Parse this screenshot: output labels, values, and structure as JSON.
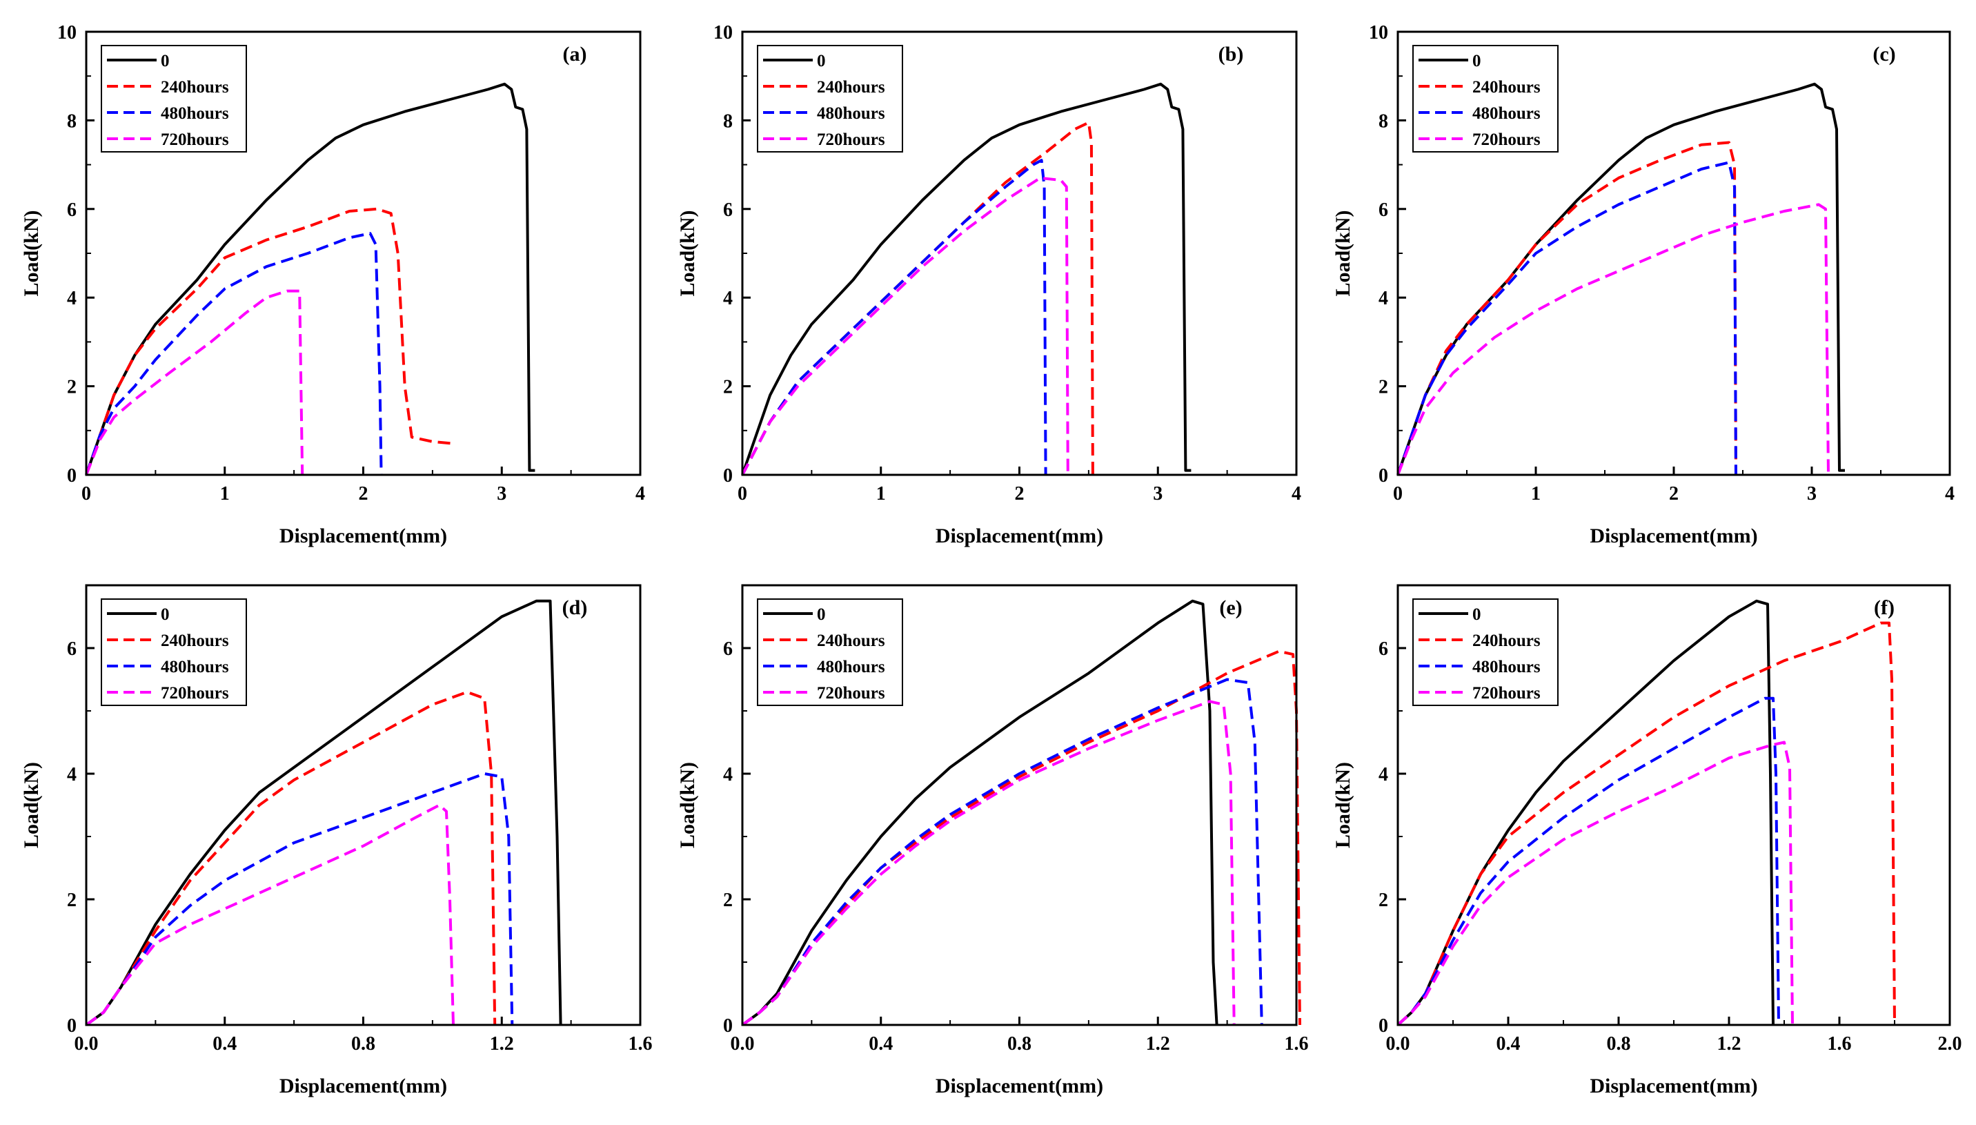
{
  "figure": {
    "series_styles": [
      {
        "name": "0",
        "color": "#000000",
        "dash": "solid"
      },
      {
        "name": "240hours",
        "color": "#ff0000",
        "dash": "dashed"
      },
      {
        "name": "480hours",
        "color": "#0000ff",
        "dash": "dashed"
      },
      {
        "name": "720hours",
        "color": "#ff00ff",
        "dash": "dashed"
      }
    ]
  },
  "chart_data": [
    {
      "type": "line",
      "panel_label": "(a)",
      "xlabel": "Displacement(mm)",
      "ylabel": "Load(kN)",
      "xlim": [
        0,
        4
      ],
      "ylim": [
        0,
        10
      ],
      "xticks": [
        "0",
        "1",
        "2",
        "3",
        "4"
      ],
      "yticks": [
        "0",
        "2",
        "4",
        "6",
        "8",
        "10"
      ],
      "xtick_values": [
        0,
        1,
        2,
        3,
        4
      ],
      "ytick_values": [
        0,
        2,
        4,
        6,
        8,
        10
      ],
      "legend": [
        "0",
        "240hours",
        "480hours",
        "720hours"
      ],
      "series": [
        {
          "name": "0",
          "x": [
            0,
            0.1,
            0.2,
            0.35,
            0.5,
            0.8,
            1.0,
            1.3,
            1.6,
            1.8,
            2.0,
            2.3,
            2.6,
            2.9,
            3.02,
            3.07,
            3.1,
            3.15,
            3.18,
            3.2,
            3.24
          ],
          "y": [
            0,
            0.9,
            1.8,
            2.7,
            3.4,
            4.4,
            5.2,
            6.2,
            7.1,
            7.6,
            7.9,
            8.2,
            8.45,
            8.7,
            8.82,
            8.7,
            8.3,
            8.25,
            7.8,
            0.1,
            0.1
          ]
        },
        {
          "name": "240hours",
          "x": [
            0,
            0.1,
            0.2,
            0.35,
            0.5,
            0.8,
            1.0,
            1.3,
            1.6,
            1.9,
            2.1,
            2.2,
            2.25,
            2.3,
            2.35,
            2.5,
            2.67
          ],
          "y": [
            0,
            0.9,
            1.8,
            2.7,
            3.3,
            4.2,
            4.9,
            5.3,
            5.6,
            5.95,
            6.0,
            5.9,
            5.0,
            2.0,
            0.85,
            0.75,
            0.7
          ]
        },
        {
          "name": "480hours",
          "x": [
            0,
            0.1,
            0.2,
            0.35,
            0.5,
            0.8,
            1.0,
            1.3,
            1.6,
            1.9,
            2.05,
            2.09,
            2.12,
            2.13
          ],
          "y": [
            0,
            0.9,
            1.5,
            2.0,
            2.6,
            3.6,
            4.2,
            4.7,
            5.0,
            5.35,
            5.45,
            5.2,
            2.0,
            0
          ]
        },
        {
          "name": "720hours",
          "x": [
            0,
            0.1,
            0.2,
            0.35,
            0.6,
            0.9,
            1.15,
            1.3,
            1.45,
            1.54,
            1.56
          ],
          "y": [
            0,
            0.8,
            1.3,
            1.7,
            2.3,
            3.0,
            3.65,
            4.0,
            4.15,
            4.15,
            0
          ]
        }
      ]
    },
    {
      "type": "line",
      "panel_label": "(b)",
      "xlabel": "Displacement(mm)",
      "ylabel": "Load(kN)",
      "xlim": [
        0,
        4
      ],
      "ylim": [
        0,
        10
      ],
      "xticks": [
        "0",
        "1",
        "2",
        "3",
        "4"
      ],
      "yticks": [
        "0",
        "2",
        "4",
        "6",
        "8",
        "10"
      ],
      "xtick_values": [
        0,
        1,
        2,
        3,
        4
      ],
      "ytick_values": [
        0,
        2,
        4,
        6,
        8,
        10
      ],
      "legend": [
        "0",
        "240hours",
        "480hours",
        "720hours"
      ],
      "series": [
        {
          "name": "0",
          "x": [
            0,
            0.1,
            0.2,
            0.35,
            0.5,
            0.8,
            1.0,
            1.3,
            1.6,
            1.8,
            2.0,
            2.3,
            2.6,
            2.9,
            3.02,
            3.07,
            3.1,
            3.15,
            3.18,
            3.2,
            3.24
          ],
          "y": [
            0,
            0.9,
            1.8,
            2.7,
            3.4,
            4.4,
            5.2,
            6.2,
            7.1,
            7.6,
            7.9,
            8.2,
            8.45,
            8.7,
            8.82,
            8.7,
            8.3,
            8.25,
            7.8,
            0.1,
            0.1
          ]
        },
        {
          "name": "240hours",
          "x": [
            0,
            0.1,
            0.2,
            0.4,
            0.7,
            1.0,
            1.3,
            1.6,
            1.9,
            2.2,
            2.4,
            2.5,
            2.52,
            2.53
          ],
          "y": [
            0,
            0.6,
            1.2,
            2.1,
            3.0,
            3.9,
            4.8,
            5.7,
            6.6,
            7.3,
            7.8,
            7.95,
            7.5,
            0
          ]
        },
        {
          "name": "480hours",
          "x": [
            0,
            0.1,
            0.2,
            0.4,
            0.7,
            1.0,
            1.3,
            1.6,
            1.9,
            2.1,
            2.16,
            2.18,
            2.19
          ],
          "y": [
            0,
            0.6,
            1.2,
            2.1,
            3.0,
            3.9,
            4.8,
            5.7,
            6.5,
            7.0,
            7.1,
            6.5,
            0
          ]
        },
        {
          "name": "720hours",
          "x": [
            0,
            0.1,
            0.2,
            0.4,
            0.7,
            1.0,
            1.3,
            1.6,
            1.9,
            2.15,
            2.3,
            2.34,
            2.35
          ],
          "y": [
            0,
            0.6,
            1.2,
            2.0,
            2.9,
            3.8,
            4.7,
            5.5,
            6.2,
            6.7,
            6.65,
            6.5,
            0
          ]
        }
      ]
    },
    {
      "type": "line",
      "panel_label": "(c)",
      "xlabel": "Displacement(mm)",
      "ylabel": "Load(kN)",
      "xlim": [
        0,
        4
      ],
      "ylim": [
        0,
        10
      ],
      "xticks": [
        "0",
        "1",
        "2",
        "3",
        "4"
      ],
      "yticks": [
        "0",
        "2",
        "4",
        "6",
        "8",
        "10"
      ],
      "xtick_values": [
        0,
        1,
        2,
        3,
        4
      ],
      "ytick_values": [
        0,
        2,
        4,
        6,
        8,
        10
      ],
      "legend": [
        "0",
        "240hours",
        "480hours",
        "720hours"
      ],
      "series": [
        {
          "name": "0",
          "x": [
            0,
            0.1,
            0.2,
            0.35,
            0.5,
            0.8,
            1.0,
            1.3,
            1.6,
            1.8,
            2.0,
            2.3,
            2.6,
            2.9,
            3.02,
            3.07,
            3.1,
            3.15,
            3.18,
            3.2,
            3.24
          ],
          "y": [
            0,
            0.9,
            1.8,
            2.7,
            3.4,
            4.4,
            5.2,
            6.2,
            7.1,
            7.6,
            7.9,
            8.2,
            8.45,
            8.7,
            8.82,
            8.7,
            8.3,
            8.25,
            7.8,
            0.1,
            0.1
          ]
        },
        {
          "name": "240hours",
          "x": [
            0,
            0.1,
            0.2,
            0.35,
            0.5,
            0.8,
            1.0,
            1.3,
            1.6,
            1.9,
            2.2,
            2.4,
            2.44,
            2.45
          ],
          "y": [
            0,
            0.9,
            1.8,
            2.8,
            3.4,
            4.4,
            5.2,
            6.1,
            6.7,
            7.1,
            7.45,
            7.5,
            7.0,
            0
          ]
        },
        {
          "name": "480hours",
          "x": [
            0,
            0.1,
            0.2,
            0.35,
            0.5,
            0.8,
            1.0,
            1.3,
            1.6,
            1.9,
            2.2,
            2.4,
            2.44,
            2.45
          ],
          "y": [
            0,
            0.9,
            1.8,
            2.7,
            3.3,
            4.3,
            5.0,
            5.6,
            6.1,
            6.5,
            6.9,
            7.05,
            6.5,
            0
          ]
        },
        {
          "name": "720hours",
          "x": [
            0,
            0.1,
            0.2,
            0.4,
            0.7,
            1.0,
            1.3,
            1.6,
            1.9,
            2.2,
            2.5,
            2.8,
            3.05,
            3.1,
            3.12
          ],
          "y": [
            0,
            0.8,
            1.5,
            2.3,
            3.1,
            3.7,
            4.2,
            4.6,
            5.0,
            5.4,
            5.7,
            5.95,
            6.1,
            6.0,
            0
          ]
        }
      ]
    },
    {
      "type": "line",
      "panel_label": "(d)",
      "xlabel": "Displacement(mm)",
      "ylabel": "Load(kN)",
      "xlim": [
        0,
        1.6
      ],
      "ylim": [
        0,
        7
      ],
      "xticks": [
        "0.0",
        "0.4",
        "0.8",
        "1.2",
        "1.6"
      ],
      "yticks": [
        "0",
        "2",
        "4",
        "6"
      ],
      "xtick_values": [
        0,
        0.4,
        0.8,
        1.2,
        1.6
      ],
      "ytick_values": [
        0,
        2,
        4,
        6
      ],
      "legend": [
        "0",
        "240hours",
        "480hours",
        "720hours"
      ],
      "series": [
        {
          "name": "0",
          "x": [
            0,
            0.05,
            0.1,
            0.2,
            0.3,
            0.4,
            0.5,
            0.6,
            0.8,
            1.0,
            1.2,
            1.3,
            1.34,
            1.36,
            1.37
          ],
          "y": [
            0,
            0.2,
            0.6,
            1.6,
            2.4,
            3.1,
            3.7,
            4.1,
            4.9,
            5.7,
            6.5,
            6.75,
            6.75,
            3.0,
            0
          ]
        },
        {
          "name": "240hours",
          "x": [
            0,
            0.05,
            0.1,
            0.2,
            0.3,
            0.4,
            0.5,
            0.6,
            0.8,
            1.0,
            1.1,
            1.15,
            1.17,
            1.18
          ],
          "y": [
            0,
            0.2,
            0.6,
            1.5,
            2.3,
            2.9,
            3.5,
            3.9,
            4.5,
            5.1,
            5.3,
            5.2,
            4.0,
            0
          ]
        },
        {
          "name": "480hours",
          "x": [
            0,
            0.05,
            0.1,
            0.2,
            0.3,
            0.4,
            0.5,
            0.6,
            0.8,
            1.0,
            1.15,
            1.2,
            1.22,
            1.23
          ],
          "y": [
            0,
            0.2,
            0.6,
            1.4,
            1.9,
            2.3,
            2.6,
            2.9,
            3.3,
            3.7,
            4.0,
            3.95,
            3.0,
            0
          ]
        },
        {
          "name": "720hours",
          "x": [
            0,
            0.05,
            0.1,
            0.2,
            0.3,
            0.4,
            0.5,
            0.6,
            0.8,
            0.95,
            1.02,
            1.04,
            1.05,
            1.06
          ],
          "y": [
            0,
            0.2,
            0.6,
            1.3,
            1.6,
            1.85,
            2.1,
            2.35,
            2.85,
            3.3,
            3.5,
            3.4,
            2.0,
            0
          ]
        }
      ]
    },
    {
      "type": "line",
      "panel_label": "(e)",
      "xlabel": "Displacement(mm)",
      "ylabel": "Load(kN)",
      "xlim": [
        0,
        1.6
      ],
      "ylim": [
        0,
        7
      ],
      "xticks": [
        "0.0",
        "0.4",
        "0.8",
        "1.2",
        "1.6"
      ],
      "yticks": [
        "0",
        "2",
        "4",
        "6"
      ],
      "xtick_values": [
        0,
        0.4,
        0.8,
        1.2,
        1.6
      ],
      "ytick_values": [
        0,
        2,
        4,
        6
      ],
      "legend": [
        "0",
        "240hours",
        "480hours",
        "720hours"
      ],
      "series": [
        {
          "name": "0",
          "x": [
            0,
            0.05,
            0.1,
            0.2,
            0.3,
            0.4,
            0.5,
            0.6,
            0.8,
            1.0,
            1.2,
            1.3,
            1.33,
            1.35,
            1.36,
            1.37
          ],
          "y": [
            0,
            0.2,
            0.5,
            1.5,
            2.3,
            3.0,
            3.6,
            4.1,
            4.9,
            5.6,
            6.4,
            6.75,
            6.7,
            5.0,
            1.0,
            0
          ]
        },
        {
          "name": "240hours",
          "x": [
            0,
            0.05,
            0.1,
            0.2,
            0.3,
            0.4,
            0.5,
            0.6,
            0.8,
            1.0,
            1.2,
            1.4,
            1.55,
            1.59,
            1.6,
            1.61
          ],
          "y": [
            0,
            0.2,
            0.45,
            1.3,
            1.9,
            2.5,
            2.9,
            3.3,
            3.95,
            4.5,
            5.0,
            5.6,
            5.95,
            5.9,
            5.0,
            0
          ]
        },
        {
          "name": "480hours",
          "x": [
            0,
            0.05,
            0.1,
            0.2,
            0.3,
            0.4,
            0.5,
            0.6,
            0.8,
            1.0,
            1.2,
            1.4,
            1.46,
            1.48,
            1.5
          ],
          "y": [
            0,
            0.2,
            0.45,
            1.3,
            1.95,
            2.5,
            2.95,
            3.35,
            4.0,
            4.55,
            5.05,
            5.5,
            5.45,
            4.5,
            0
          ]
        },
        {
          "name": "720hours",
          "x": [
            0,
            0.05,
            0.1,
            0.2,
            0.3,
            0.4,
            0.5,
            0.6,
            0.8,
            1.0,
            1.2,
            1.35,
            1.39,
            1.41,
            1.42
          ],
          "y": [
            0,
            0.2,
            0.45,
            1.25,
            1.85,
            2.4,
            2.85,
            3.25,
            3.9,
            4.4,
            4.85,
            5.15,
            5.1,
            4.0,
            0
          ]
        }
      ]
    },
    {
      "type": "line",
      "panel_label": "(f)",
      "xlabel": "Displacement(mm)",
      "ylabel": "Load(kN)",
      "xlim": [
        0,
        2.0
      ],
      "ylim": [
        0,
        7
      ],
      "xticks": [
        "0.0",
        "0.4",
        "0.8",
        "1.2",
        "1.6",
        "2.0"
      ],
      "yticks": [
        "0",
        "2",
        "4",
        "6"
      ],
      "xtick_values": [
        0,
        0.4,
        0.8,
        1.2,
        1.6,
        2.0
      ],
      "ytick_values": [
        0,
        2,
        4,
        6
      ],
      "legend": [
        "0",
        "240hours",
        "480hours",
        "720hours"
      ],
      "series": [
        {
          "name": "0",
          "x": [
            0,
            0.05,
            0.1,
            0.2,
            0.3,
            0.4,
            0.5,
            0.6,
            0.8,
            1.0,
            1.2,
            1.3,
            1.34,
            1.35,
            1.36
          ],
          "y": [
            0,
            0.2,
            0.5,
            1.5,
            2.4,
            3.1,
            3.7,
            4.2,
            5.0,
            5.8,
            6.5,
            6.75,
            6.7,
            4.0,
            0
          ]
        },
        {
          "name": "240hours",
          "x": [
            0,
            0.05,
            0.1,
            0.2,
            0.3,
            0.4,
            0.6,
            0.8,
            1.0,
            1.2,
            1.4,
            1.6,
            1.75,
            1.78,
            1.79,
            1.8
          ],
          "y": [
            0,
            0.2,
            0.5,
            1.5,
            2.4,
            3.0,
            3.7,
            4.3,
            4.9,
            5.4,
            5.8,
            6.1,
            6.4,
            6.4,
            5.5,
            0
          ]
        },
        {
          "name": "480hours",
          "x": [
            0,
            0.05,
            0.1,
            0.2,
            0.3,
            0.4,
            0.6,
            0.8,
            1.0,
            1.2,
            1.33,
            1.36,
            1.37,
            1.38
          ],
          "y": [
            0,
            0.2,
            0.5,
            1.35,
            2.1,
            2.6,
            3.3,
            3.9,
            4.4,
            4.9,
            5.2,
            5.2,
            4.0,
            0
          ]
        },
        {
          "name": "720hours",
          "x": [
            0,
            0.05,
            0.1,
            0.2,
            0.3,
            0.4,
            0.6,
            0.8,
            1.0,
            1.2,
            1.35,
            1.4,
            1.42,
            1.43
          ],
          "y": [
            0,
            0.2,
            0.45,
            1.25,
            1.9,
            2.35,
            2.95,
            3.4,
            3.8,
            4.25,
            4.45,
            4.5,
            4.1,
            0
          ]
        }
      ]
    }
  ]
}
